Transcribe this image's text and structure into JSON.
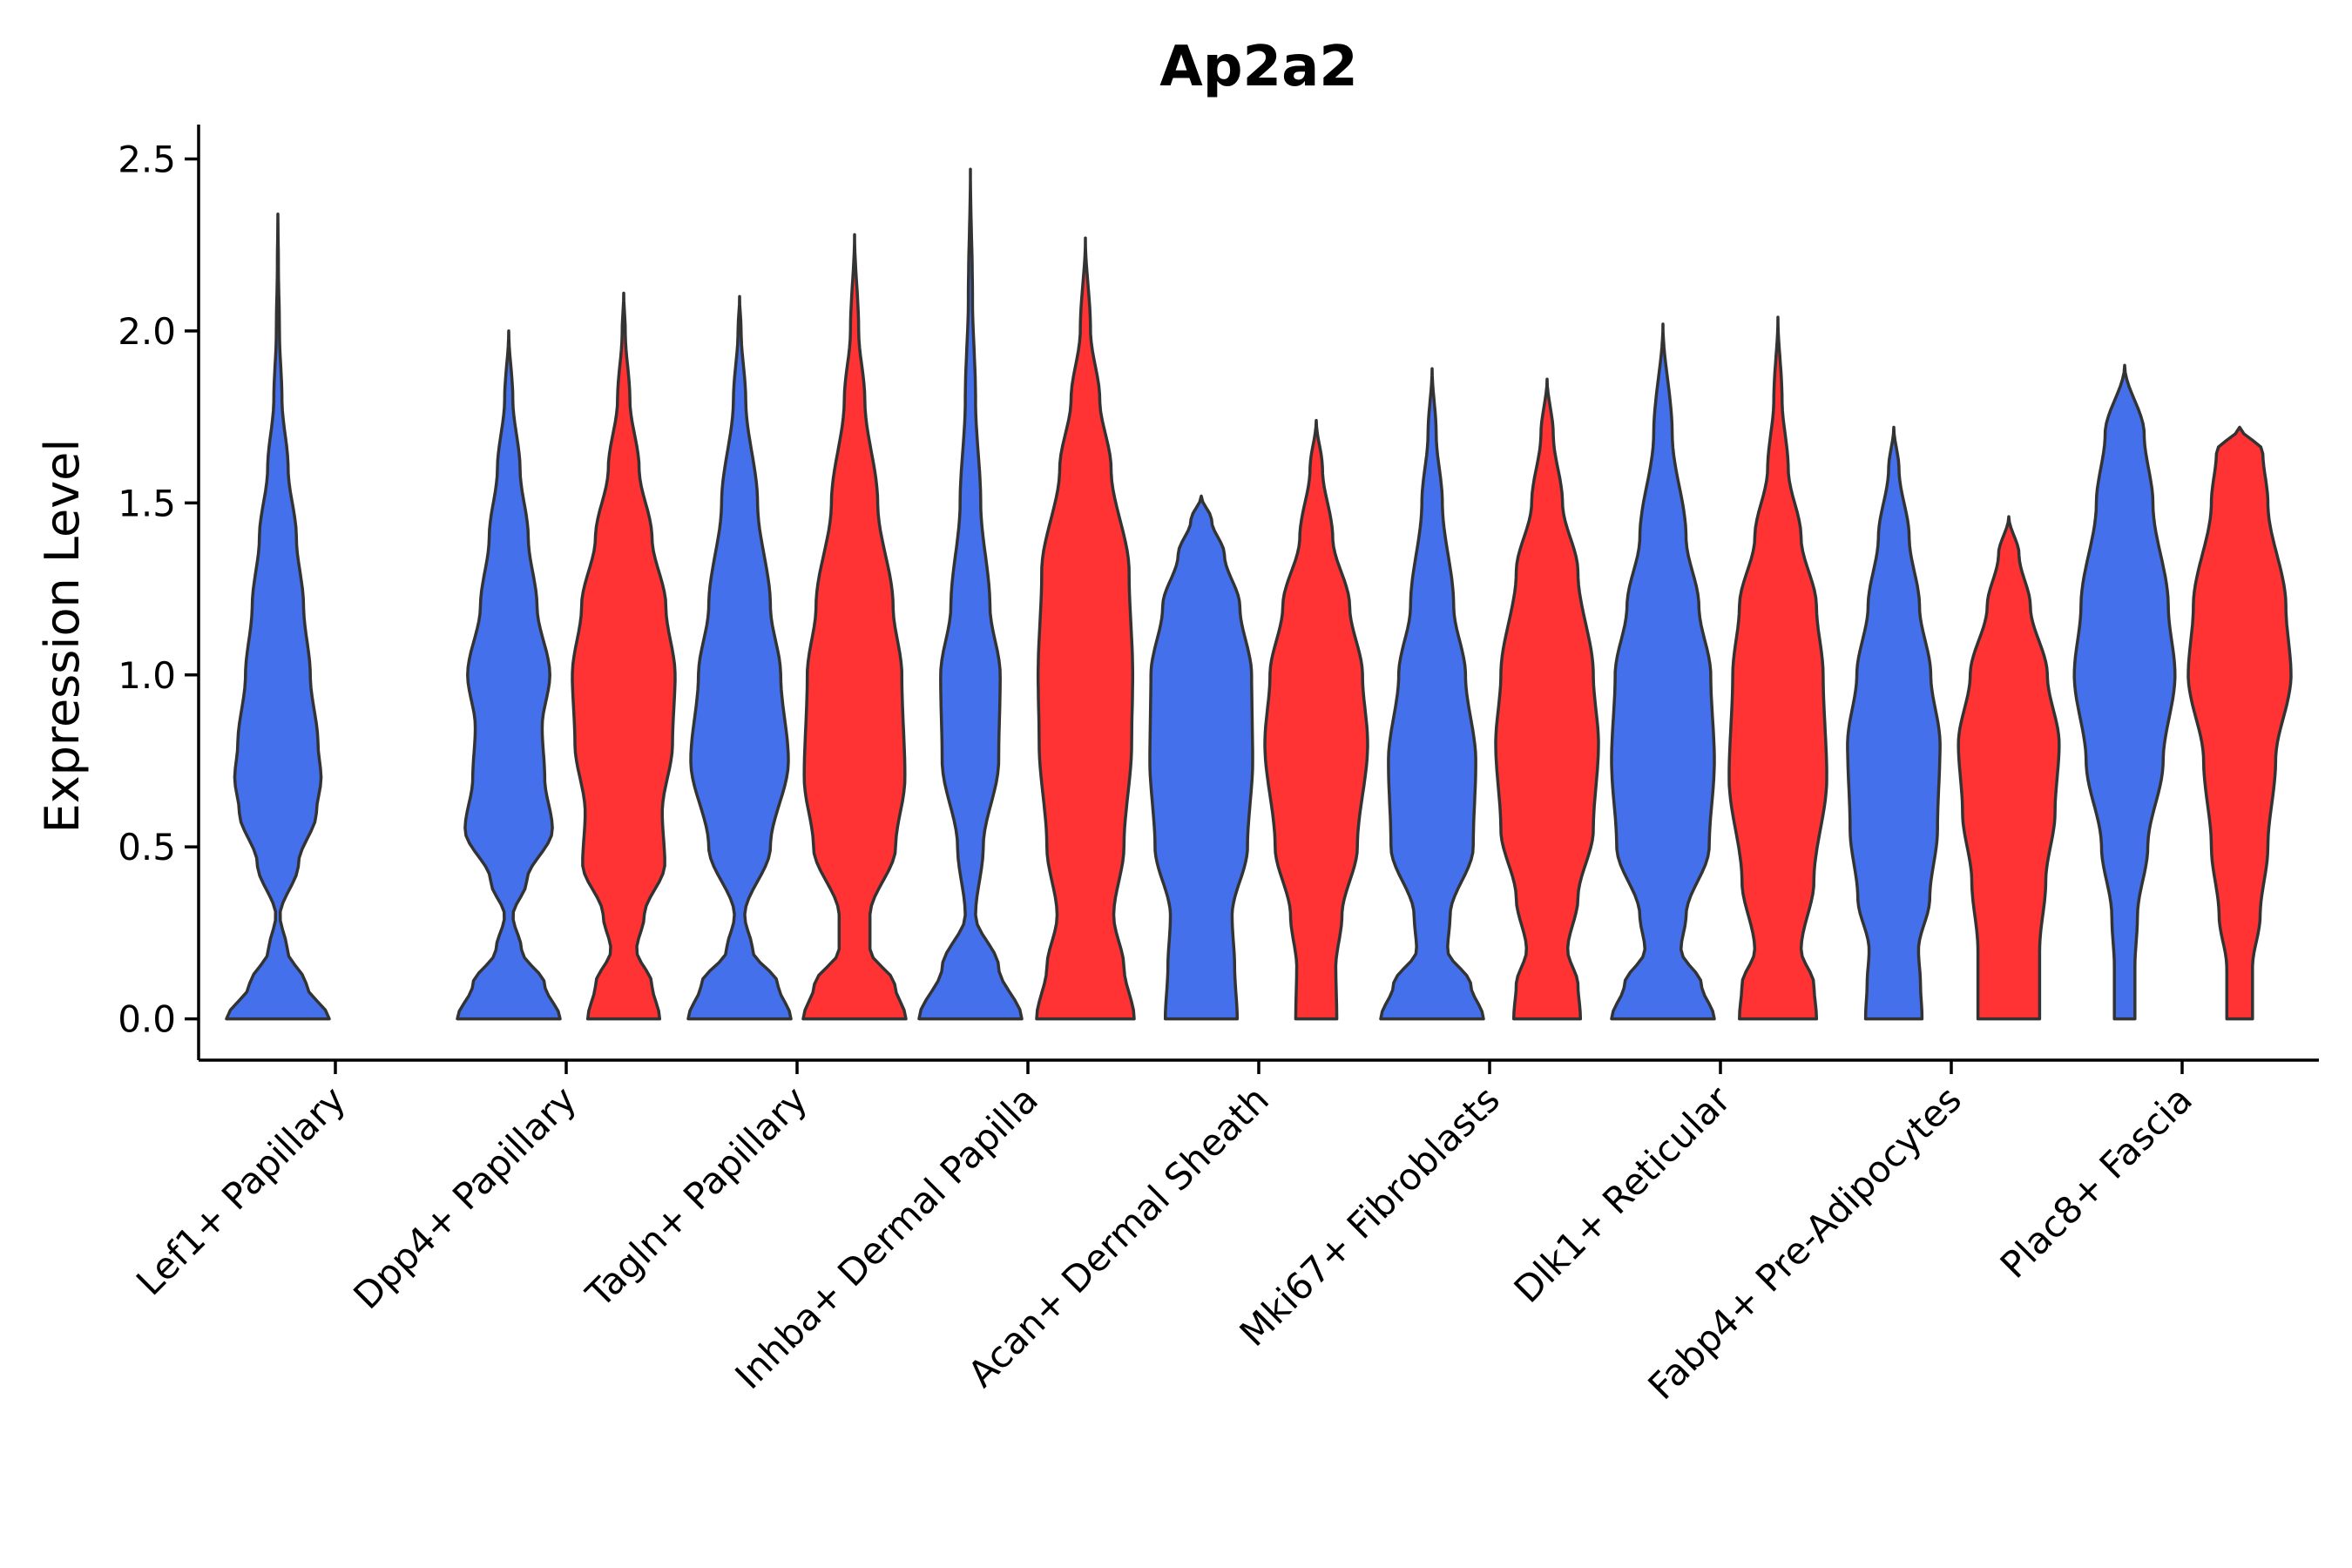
{
  "chart_data": {
    "type": "violin",
    "title": "Ap2a2",
    "xlabel": "",
    "ylabel": "Expression Level",
    "ylim": [
      -0.12,
      2.6
    ],
    "yticks": [
      0.0,
      0.5,
      1.0,
      1.5,
      2.0,
      2.5
    ],
    "ytick_labels": [
      "0.0",
      "0.5",
      "1.0",
      "1.5",
      "2.0",
      "2.5"
    ],
    "grid": false,
    "legend": "none",
    "colors": {
      "group_a": "#4570EB",
      "group_b": "#FF3333",
      "outline": "#333333"
    },
    "categories": [
      "Lef1+ Papillary",
      "Dpp4+ Papillary",
      "Tagln+ Papillary",
      "Inhba+ Dermal Papilla",
      "Acan+ Dermal Sheath",
      "Mki67+ Fibroblasts",
      "Dlk1+ Reticular",
      "Fabp4+ Pre-Adipocytes",
      "Plac8+ Fascia"
    ],
    "violins": [
      {
        "category": 0,
        "group": "a",
        "max": 2.34,
        "profile": [
          [
            0,
            1.0
          ],
          [
            0.1,
            0.55
          ],
          [
            0.2,
            0.18
          ],
          [
            0.3,
            0.04
          ],
          [
            0.45,
            0.4
          ],
          [
            0.6,
            0.75
          ],
          [
            0.7,
            0.84
          ],
          [
            0.8,
            0.78
          ],
          [
            1.0,
            0.63
          ],
          [
            1.2,
            0.5
          ],
          [
            1.4,
            0.36
          ],
          [
            1.6,
            0.2
          ],
          [
            1.8,
            0.08
          ],
          [
            2.0,
            0.03
          ],
          [
            2.2,
            0.01
          ],
          [
            2.34,
            0.0
          ]
        ]
      },
      {
        "category": 1,
        "group": "a",
        "max": 2.0,
        "profile": [
          [
            0,
            1.0
          ],
          [
            0.1,
            0.7
          ],
          [
            0.2,
            0.25
          ],
          [
            0.3,
            0.08
          ],
          [
            0.4,
            0.35
          ],
          [
            0.55,
            0.85
          ],
          [
            0.7,
            0.7
          ],
          [
            0.85,
            0.65
          ],
          [
            1.0,
            0.8
          ],
          [
            1.2,
            0.55
          ],
          [
            1.4,
            0.38
          ],
          [
            1.6,
            0.22
          ],
          [
            1.8,
            0.08
          ],
          [
            2.0,
            0.0
          ]
        ]
      },
      {
        "category": 1,
        "group": "b",
        "max": 2.11,
        "profile": [
          [
            0,
            0.7
          ],
          [
            0.1,
            0.55
          ],
          [
            0.2,
            0.25
          ],
          [
            0.3,
            0.4
          ],
          [
            0.45,
            0.8
          ],
          [
            0.6,
            0.75
          ],
          [
            0.8,
            0.95
          ],
          [
            1.0,
            1.0
          ],
          [
            1.2,
            0.82
          ],
          [
            1.4,
            0.55
          ],
          [
            1.6,
            0.3
          ],
          [
            1.8,
            0.12
          ],
          [
            2.0,
            0.03
          ],
          [
            2.11,
            0.0
          ]
        ]
      },
      {
        "category": 2,
        "group": "a",
        "max": 2.1,
        "profile": [
          [
            0,
            1.0
          ],
          [
            0.1,
            0.75
          ],
          [
            0.2,
            0.25
          ],
          [
            0.3,
            0.1
          ],
          [
            0.5,
            0.6
          ],
          [
            0.75,
            0.95
          ],
          [
            1.0,
            0.8
          ],
          [
            1.2,
            0.6
          ],
          [
            1.5,
            0.35
          ],
          [
            1.8,
            0.12
          ],
          [
            2.0,
            0.03
          ],
          [
            2.1,
            0.0
          ]
        ]
      },
      {
        "category": 2,
        "group": "b",
        "max": 2.28,
        "profile": [
          [
            0,
            1.0
          ],
          [
            0.1,
            0.78
          ],
          [
            0.2,
            0.3
          ],
          [
            0.3,
            0.3
          ],
          [
            0.5,
            0.8
          ],
          [
            0.7,
            0.98
          ],
          [
            1.0,
            0.92
          ],
          [
            1.2,
            0.75
          ],
          [
            1.5,
            0.45
          ],
          [
            1.8,
            0.2
          ],
          [
            2.0,
            0.08
          ],
          [
            2.28,
            0.0
          ]
        ]
      },
      {
        "category": 3,
        "group": "a",
        "max": 2.47,
        "profile": [
          [
            0,
            1.0
          ],
          [
            0.15,
            0.55
          ],
          [
            0.3,
            0.1
          ],
          [
            0.5,
            0.25
          ],
          [
            0.75,
            0.55
          ],
          [
            1.0,
            0.58
          ],
          [
            1.2,
            0.38
          ],
          [
            1.5,
            0.2
          ],
          [
            1.8,
            0.1
          ],
          [
            2.1,
            0.04
          ],
          [
            2.47,
            0.0
          ]
        ]
      },
      {
        "category": 3,
        "group": "b",
        "max": 2.27,
        "profile": [
          [
            0,
            0.95
          ],
          [
            0.15,
            0.75
          ],
          [
            0.3,
            0.55
          ],
          [
            0.5,
            0.75
          ],
          [
            0.8,
            0.9
          ],
          [
            1.0,
            0.92
          ],
          [
            1.3,
            0.85
          ],
          [
            1.6,
            0.5
          ],
          [
            1.8,
            0.28
          ],
          [
            2.0,
            0.1
          ],
          [
            2.27,
            0.0
          ]
        ]
      },
      {
        "category": 4,
        "group": "a",
        "max": 1.52,
        "profile": [
          [
            0,
            0.7
          ],
          [
            0.15,
            0.65
          ],
          [
            0.3,
            0.6
          ],
          [
            0.5,
            0.9
          ],
          [
            0.75,
            1.0
          ],
          [
            1.0,
            0.98
          ],
          [
            1.2,
            0.75
          ],
          [
            1.35,
            0.45
          ],
          [
            1.45,
            0.2
          ],
          [
            1.52,
            0.0
          ]
        ]
      },
      {
        "category": 4,
        "group": "b",
        "max": 1.74,
        "profile": [
          [
            0,
            0.4
          ],
          [
            0.15,
            0.38
          ],
          [
            0.3,
            0.5
          ],
          [
            0.5,
            0.8
          ],
          [
            0.8,
            1.0
          ],
          [
            1.0,
            0.9
          ],
          [
            1.2,
            0.65
          ],
          [
            1.4,
            0.32
          ],
          [
            1.6,
            0.12
          ],
          [
            1.74,
            0.0
          ]
        ]
      },
      {
        "category": 5,
        "group": "a",
        "max": 1.89,
        "profile": [
          [
            0,
            1.0
          ],
          [
            0.1,
            0.75
          ],
          [
            0.2,
            0.3
          ],
          [
            0.3,
            0.35
          ],
          [
            0.5,
            0.8
          ],
          [
            0.75,
            0.85
          ],
          [
            1.0,
            0.65
          ],
          [
            1.2,
            0.42
          ],
          [
            1.5,
            0.2
          ],
          [
            1.7,
            0.08
          ],
          [
            1.89,
            0.0
          ]
        ]
      },
      {
        "category": 5,
        "group": "b",
        "max": 1.86,
        "profile": [
          [
            0,
            0.65
          ],
          [
            0.1,
            0.6
          ],
          [
            0.2,
            0.4
          ],
          [
            0.35,
            0.6
          ],
          [
            0.55,
            0.9
          ],
          [
            0.8,
            1.0
          ],
          [
            1.0,
            0.9
          ],
          [
            1.3,
            0.6
          ],
          [
            1.5,
            0.3
          ],
          [
            1.7,
            0.12
          ],
          [
            1.86,
            0.0
          ]
        ]
      },
      {
        "category": 6,
        "group": "a",
        "max": 2.02,
        "profile": [
          [
            0,
            1.0
          ],
          [
            0.1,
            0.75
          ],
          [
            0.2,
            0.35
          ],
          [
            0.3,
            0.45
          ],
          [
            0.5,
            0.9
          ],
          [
            0.75,
            1.0
          ],
          [
            1.0,
            0.93
          ],
          [
            1.2,
            0.7
          ],
          [
            1.4,
            0.45
          ],
          [
            1.7,
            0.18
          ],
          [
            2.02,
            0.0
          ]
        ]
      },
      {
        "category": 6,
        "group": "b",
        "max": 2.04,
        "profile": [
          [
            0,
            0.75
          ],
          [
            0.1,
            0.7
          ],
          [
            0.2,
            0.45
          ],
          [
            0.4,
            0.7
          ],
          [
            0.7,
            0.95
          ],
          [
            1.0,
            0.88
          ],
          [
            1.2,
            0.75
          ],
          [
            1.4,
            0.45
          ],
          [
            1.6,
            0.2
          ],
          [
            1.8,
            0.08
          ],
          [
            2.04,
            0.0
          ]
        ]
      },
      {
        "category": 7,
        "group": "a",
        "max": 1.72,
        "profile": [
          [
            0,
            0.55
          ],
          [
            0.1,
            0.52
          ],
          [
            0.2,
            0.48
          ],
          [
            0.35,
            0.7
          ],
          [
            0.55,
            0.85
          ],
          [
            0.8,
            0.9
          ],
          [
            1.0,
            0.72
          ],
          [
            1.2,
            0.5
          ],
          [
            1.4,
            0.3
          ],
          [
            1.6,
            0.1
          ],
          [
            1.72,
            0.0
          ]
        ]
      },
      {
        "category": 7,
        "group": "b",
        "max": 1.46,
        "profile": [
          [
            0,
            0.6
          ],
          [
            0.2,
            0.6
          ],
          [
            0.4,
            0.72
          ],
          [
            0.6,
            0.9
          ],
          [
            0.8,
            0.98
          ],
          [
            1.0,
            0.75
          ],
          [
            1.2,
            0.42
          ],
          [
            1.35,
            0.2
          ],
          [
            1.46,
            0.0
          ]
        ]
      },
      {
        "category": 8,
        "group": "a",
        "max": 1.9,
        "profile": [
          [
            0,
            0.2
          ],
          [
            0.15,
            0.2
          ],
          [
            0.3,
            0.25
          ],
          [
            0.5,
            0.45
          ],
          [
            0.75,
            0.75
          ],
          [
            1.0,
            0.98
          ],
          [
            1.2,
            0.85
          ],
          [
            1.5,
            0.55
          ],
          [
            1.7,
            0.38
          ],
          [
            1.9,
            0.0
          ]
        ]
      },
      {
        "category": 8,
        "group": "b",
        "max": 1.72,
        "profile": [
          [
            0,
            0.25
          ],
          [
            0.15,
            0.25
          ],
          [
            0.3,
            0.4
          ],
          [
            0.5,
            0.55
          ],
          [
            0.75,
            0.7
          ],
          [
            1.0,
            1.0
          ],
          [
            1.2,
            0.9
          ],
          [
            1.5,
            0.55
          ],
          [
            1.65,
            0.45
          ],
          [
            1.72,
            0.0
          ]
        ]
      }
    ]
  }
}
